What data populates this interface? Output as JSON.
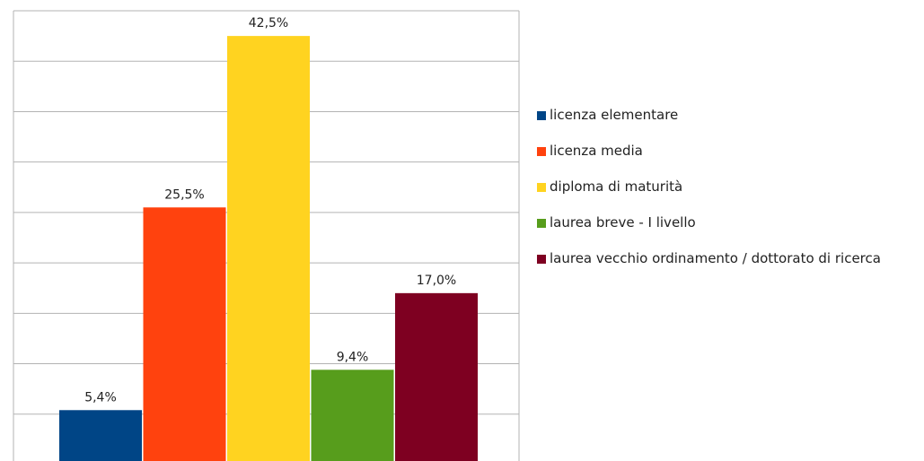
{
  "chart_data": {
    "type": "bar",
    "categories": [
      "licenza elementare",
      "licenza media",
      "diploma di maturità",
      "laurea breve - I livello",
      "laurea vecchio ordinamento / dottorato di ricerca"
    ],
    "values": [
      5.4,
      25.5,
      42.5,
      9.4,
      17.0
    ],
    "value_labels": [
      "5,4%",
      "25,5%",
      "42,5%",
      "9,4%",
      "17,0%"
    ],
    "colors": [
      "#004586",
      "#ff420e",
      "#ffd320",
      "#579d1c",
      "#7e0021"
    ],
    "ylim": [
      0,
      45
    ],
    "yticks": [
      0,
      5,
      10,
      15,
      20,
      25,
      30,
      35,
      40,
      45
    ],
    "grid": true
  }
}
